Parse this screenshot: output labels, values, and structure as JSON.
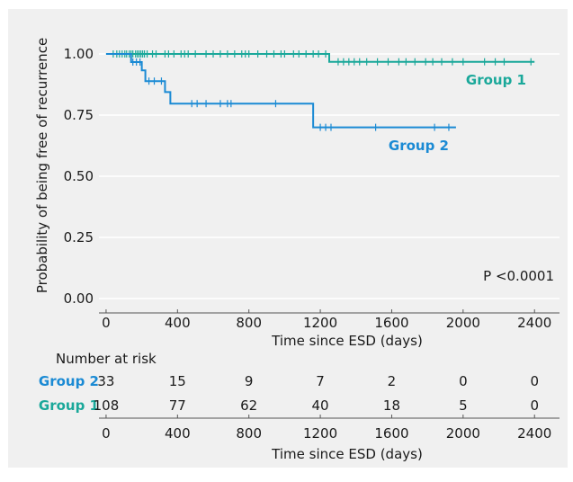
{
  "chart_data": {
    "type": "line",
    "subtype": "kaplan-meier",
    "ylabel": "Probability of being free of recurrence",
    "xlabel": "Time since ESD (days)",
    "xlim": [
      -40,
      2540
    ],
    "ylim": [
      0,
      1.0
    ],
    "x_ticks": [
      "0",
      "400",
      "800",
      "1200",
      "1600",
      "2000",
      "2400"
    ],
    "y_ticks": [
      "0.00",
      "0.25",
      "0.50",
      "0.75",
      "1.00"
    ],
    "grid": "horizontal",
    "annotation": "P <0.0001",
    "series": [
      {
        "name": "Group 1",
        "color": "#1aa89a",
        "steps": [
          [
            0,
            1.0
          ],
          [
            1250,
            1.0
          ],
          [
            1250,
            0.968
          ],
          [
            2400,
            0.968
          ]
        ],
        "censor_x": [
          40,
          60,
          75,
          90,
          105,
          115,
          130,
          140,
          150,
          165,
          175,
          185,
          195,
          205,
          215,
          230,
          260,
          280,
          330,
          350,
          380,
          420,
          440,
          460,
          500,
          560,
          600,
          640,
          680,
          720,
          760,
          780,
          800,
          850,
          900,
          940,
          980,
          1000,
          1050,
          1080,
          1120,
          1160,
          1190,
          1230,
          1300,
          1330,
          1360,
          1390,
          1420,
          1460,
          1520,
          1580,
          1640,
          1680,
          1730,
          1790,
          1830,
          1880,
          1940,
          2000,
          2120,
          2180,
          2230,
          2380
        ],
        "label_position": "right"
      },
      {
        "name": "Group 2",
        "color": "#1a8ad4",
        "steps": [
          [
            0,
            1.0
          ],
          [
            140,
            1.0
          ],
          [
            140,
            0.967
          ],
          [
            200,
            0.967
          ],
          [
            200,
            0.933
          ],
          [
            220,
            0.933
          ],
          [
            220,
            0.889
          ],
          [
            330,
            0.889
          ],
          [
            330,
            0.844
          ],
          [
            360,
            0.844
          ],
          [
            360,
            0.797
          ],
          [
            1160,
            0.797
          ],
          [
            1160,
            0.7
          ],
          [
            1960,
            0.7
          ]
        ],
        "censor_x": [
          150,
          170,
          190,
          240,
          270,
          310,
          480,
          510,
          560,
          640,
          680,
          700,
          950,
          1200,
          1230,
          1260,
          1510,
          1840,
          1920
        ],
        "label_position": "right"
      }
    ]
  },
  "risk_table": {
    "title": "Number at risk",
    "x_ticks": [
      "0",
      "400",
      "800",
      "1200",
      "1600",
      "2000",
      "2400"
    ],
    "xlabel": "Time since ESD (days)",
    "rows": [
      {
        "label": "Group 2",
        "color": "#1a8ad4",
        "values": [
          "33",
          "15",
          "9",
          "7",
          "2",
          "0",
          "0"
        ]
      },
      {
        "label": "Group 1",
        "color": "#1aa89a",
        "values": [
          "108",
          "77",
          "62",
          "40",
          "18",
          "5",
          "0"
        ]
      }
    ]
  }
}
